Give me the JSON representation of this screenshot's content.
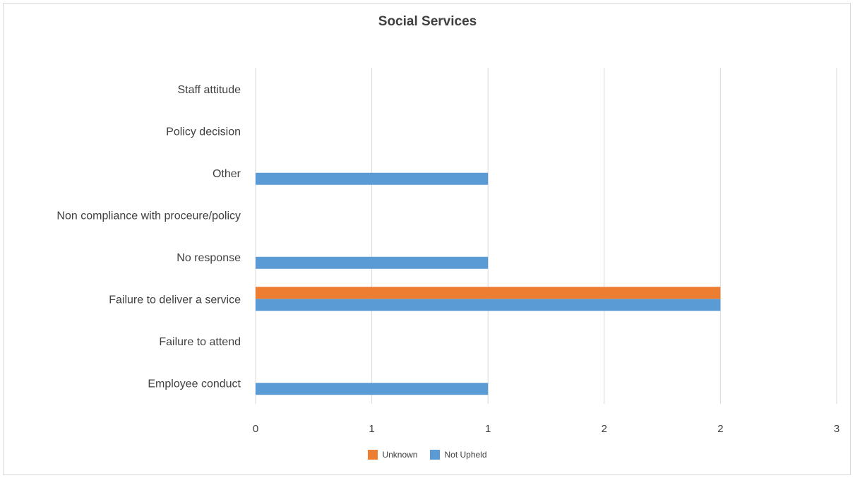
{
  "chart_data": {
    "type": "bar",
    "orientation": "horizontal",
    "title": "Social Services",
    "categories": [
      "Employee conduct",
      "Failure to attend",
      "Failure to deliver a service",
      "No response",
      "Non compliance with proceure/policy",
      "Other",
      "Policy decision",
      "Staff attitude"
    ],
    "series": [
      {
        "name": "Not Upheld",
        "color": "#5b9bd5",
        "values": [
          1,
          0,
          2,
          1,
          0,
          1,
          0,
          0
        ]
      },
      {
        "name": "Unknown",
        "color": "#ed7d31",
        "values": [
          0,
          0,
          2,
          0,
          0,
          0,
          0,
          0
        ]
      }
    ],
    "xlim": [
      0,
      2.5
    ],
    "xticks": [
      0,
      0.5,
      1,
      1.5,
      2,
      2.5
    ],
    "xtick_labels": [
      "0",
      "1",
      "1",
      "2",
      "2",
      "3"
    ],
    "grid": true,
    "legend_position": "bottom",
    "legend_order": [
      "Unknown",
      "Not Upheld"
    ]
  }
}
